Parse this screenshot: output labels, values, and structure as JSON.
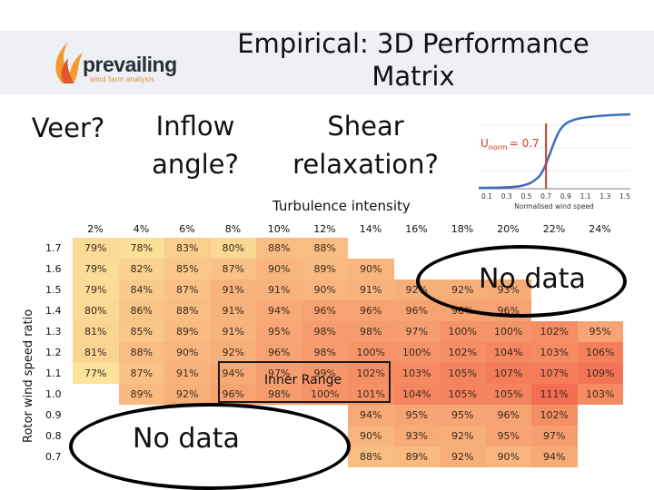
{
  "title": "Empirical: 3D Performance Matrix",
  "logo": {
    "name": "prevailing",
    "tagline": "wind farm analysis"
  },
  "questions": {
    "veer": "Veer?",
    "inflow": "Inflow angle?",
    "shear": "Shear relaxation?"
  },
  "inset": {
    "label_main": "U",
    "label_sub": "norm",
    "label_value": "= 0.7",
    "xlabel": "Normalised wind speed",
    "ticks": [
      "0.1",
      "0.3",
      "0.5",
      "0.7",
      "0.9",
      "1.1",
      "1.3",
      "1.5"
    ],
    "marker_value": 0.7
  },
  "matrix": {
    "xlabel": "Turbulence intensity",
    "ylabel": "Rotor wind speed ratio",
    "columns": [
      "2%",
      "4%",
      "6%",
      "8%",
      "10%",
      "12%",
      "14%",
      "16%",
      "18%",
      "20%",
      "22%",
      "24%"
    ],
    "rows": [
      {
        "label": "1.7",
        "cells": [
          "79%",
          "78%",
          "83%",
          "80%",
          "88%",
          "88%",
          "",
          "",
          "",
          "",
          "",
          ""
        ]
      },
      {
        "label": "1.6",
        "cells": [
          "79%",
          "82%",
          "85%",
          "87%",
          "90%",
          "89%",
          "90%",
          "",
          "",
          "",
          "",
          ""
        ]
      },
      {
        "label": "1.5",
        "cells": [
          "79%",
          "84%",
          "87%",
          "91%",
          "91%",
          "90%",
          "91%",
          "92%",
          "92%",
          "93%",
          "",
          ""
        ]
      },
      {
        "label": "1.4",
        "cells": [
          "80%",
          "86%",
          "88%",
          "91%",
          "94%",
          "96%",
          "96%",
          "96%",
          "96%",
          "96%",
          "",
          ""
        ]
      },
      {
        "label": "1.3",
        "cells": [
          "81%",
          "85%",
          "89%",
          "91%",
          "95%",
          "98%",
          "98%",
          "97%",
          "100%",
          "100%",
          "102%",
          "95%"
        ]
      },
      {
        "label": "1.2",
        "cells": [
          "81%",
          "88%",
          "90%",
          "92%",
          "96%",
          "98%",
          "100%",
          "100%",
          "102%",
          "104%",
          "103%",
          "106%"
        ]
      },
      {
        "label": "1.1",
        "cells": [
          "77%",
          "87%",
          "91%",
          "94%",
          "97%",
          "99%",
          "102%",
          "103%",
          "105%",
          "107%",
          "107%",
          "109%"
        ]
      },
      {
        "label": "1.0",
        "cells": [
          "",
          "89%",
          "92%",
          "96%",
          "98%",
          "100%",
          "101%",
          "104%",
          "105%",
          "105%",
          "111%",
          "103%"
        ]
      },
      {
        "label": "0.9",
        "cells": [
          "",
          "",
          "",
          "",
          "",
          "",
          "94%",
          "95%",
          "95%",
          "96%",
          "102%",
          ""
        ]
      },
      {
        "label": "0.8",
        "cells": [
          "",
          "",
          "",
          "",
          "",
          "",
          "90%",
          "93%",
          "92%",
          "95%",
          "97%",
          ""
        ]
      },
      {
        "label": "0.7",
        "cells": [
          "",
          "",
          "",
          "",
          "",
          "",
          "88%",
          "89%",
          "92%",
          "90%",
          "94%",
          ""
        ]
      }
    ]
  },
  "callouts": {
    "no_data_right": "No data",
    "no_data_left": "No data",
    "inner_range": "Inner Range"
  },
  "colors": {
    "low": "#fbe39a",
    "high": "#f36e52",
    "curve": "#3d6fb6",
    "marker": "#d33a2a"
  }
}
